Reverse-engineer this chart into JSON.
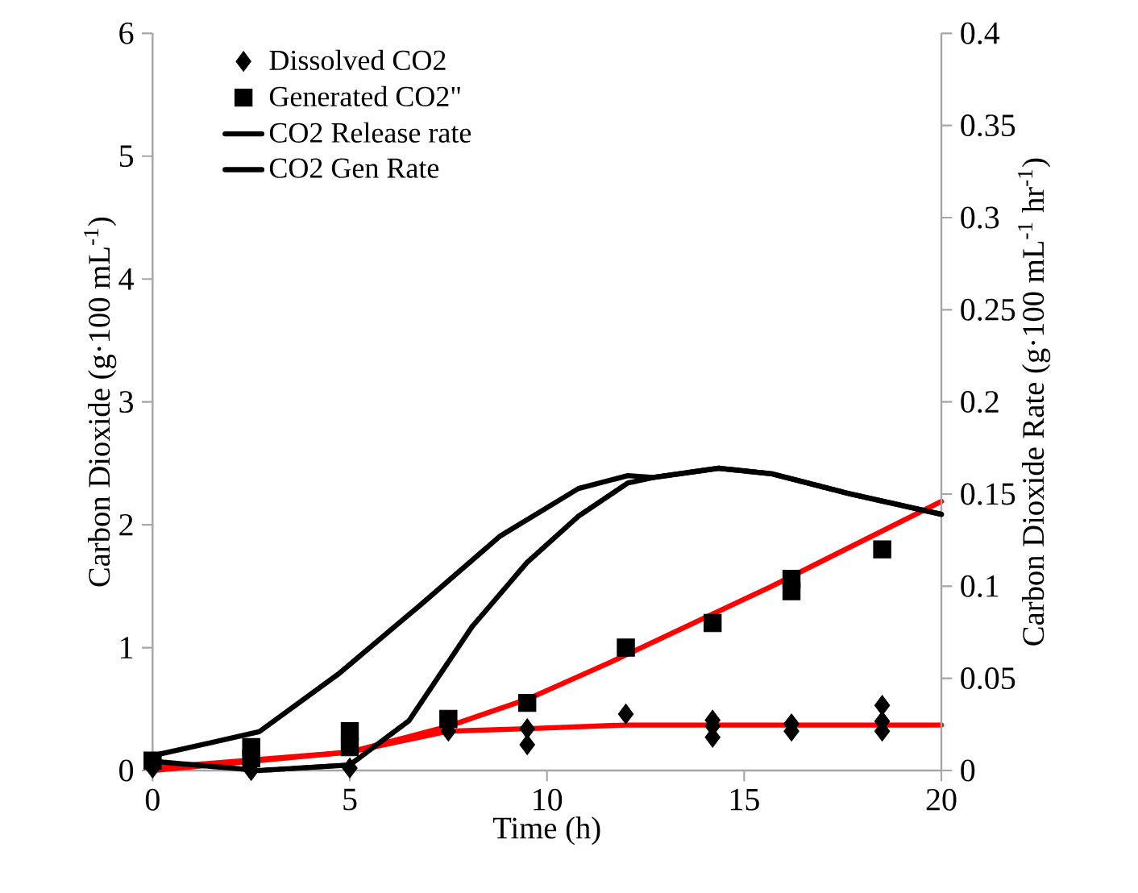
{
  "chart_data": {
    "type": "scatter",
    "xlabel": "Time (h)",
    "ylabel": "Carbon Dioxide (g·100 mL$^{-1}$)",
    "y2label": "Carbon Dioxide Rate (g·100 mL$^{-1}$ hr$^{-1}$)",
    "xlim": [
      0,
      20
    ],
    "xticks": [
      0,
      5,
      10,
      15,
      20
    ],
    "ylim": [
      0,
      6
    ],
    "yticks": [
      0,
      1,
      2,
      3,
      4,
      5,
      6
    ],
    "y2lim": [
      0,
      0.4
    ],
    "y2ticks": [
      0,
      0.05,
      0.1,
      0.15,
      0.2,
      0.25,
      0.3,
      0.35,
      0.4
    ],
    "legend": "top left",
    "grid": false,
    "series": [
      {
        "name": "Dissolved CO2",
        "marker": "diamond",
        "color": "#000000",
        "axis": "y",
        "x": [
          0,
          2.5,
          5,
          7.5,
          9.5,
          9.5,
          12,
          14.2,
          14.2,
          14.2,
          16.2,
          16.2,
          18.5,
          18.5,
          18.5
        ],
        "values": [
          0.02,
          0.0,
          0.02,
          0.32,
          0.34,
          0.21,
          0.46,
          0.27,
          0.36,
          0.41,
          0.38,
          0.32,
          0.53,
          0.4,
          0.32
        ]
      },
      {
        "name": "Generated CO2\"",
        "marker": "square",
        "color": "#000000",
        "axis": "y",
        "x": [
          0,
          2.5,
          2.5,
          5,
          5,
          7.5,
          9.5,
          12,
          14.2,
          16.2,
          16.2,
          18.5
        ],
        "values": [
          0.08,
          0.19,
          0.1,
          0.32,
          0.19,
          0.42,
          0.55,
          1.0,
          1.2,
          1.56,
          1.46,
          1.8
        ]
      },
      {
        "type": "line",
        "color": "#ff0000",
        "axis": "y",
        "line_style": "solid",
        "x": [
          0,
          5,
          7.5,
          9.5,
          11.6,
          15.7,
          20
        ],
        "values": [
          0.02,
          0.15,
          0.36,
          0.58,
          0.88,
          1.5,
          2.19
        ]
      },
      {
        "type": "line",
        "color": "#ff0000",
        "axis": "y",
        "line_style": "solid",
        "x": [
          0,
          5,
          7.5,
          9.5,
          12,
          16,
          20
        ],
        "values": [
          0,
          0.15,
          0.32,
          0.34,
          0.37,
          0.37,
          0.37
        ]
      },
      {
        "name": "CO2 Release rate",
        "type": "line",
        "color": "#000000",
        "axis": "y2",
        "line_style": "solid",
        "x": [
          0,
          2.7,
          4.75,
          6.8,
          8.8,
          10.8,
          12.05,
          12.7,
          14.35,
          15.7,
          17.7,
          20
        ],
        "values": [
          0.008,
          0.021,
          0.053,
          0.09,
          0.127,
          0.153,
          0.16,
          0.159,
          0.164,
          0.161,
          0.15,
          0.139
        ]
      },
      {
        "name": "CO2 Gen Rate",
        "type": "line",
        "color": "#000000",
        "axis": "y2",
        "line_style": "dotted",
        "x": [
          0,
          2.7,
          5,
          6.5,
          8.1,
          9.5,
          10.8,
          12.05,
          12.7,
          14.35,
          15.7,
          17.7,
          20
        ],
        "values": [
          0.005,
          0.0,
          0.003,
          0.027,
          0.078,
          0.113,
          0.138,
          0.156,
          0.159,
          0.164,
          0.161,
          0.15,
          0.139
        ]
      }
    ]
  }
}
